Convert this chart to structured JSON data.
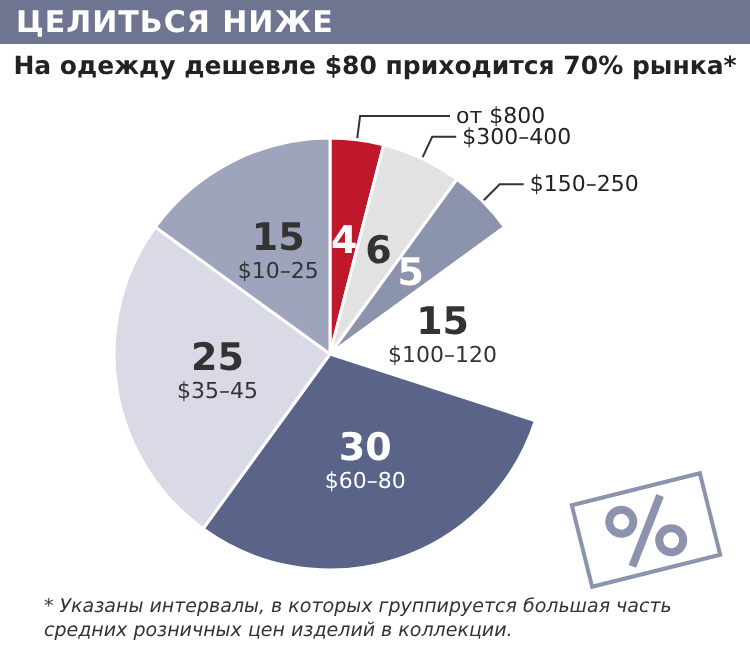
{
  "chart_data": {
    "type": "pie",
    "title": "ЦЕЛИТЬСЯ НИЖЕ",
    "subtitle": "На одежду дешевле $80 приходится 70% рынка*",
    "categories": [
      "от $800",
      "$300–400",
      "$150–250",
      "$100–120",
      "$60–80",
      "$35–45",
      "$10–25"
    ],
    "values": [
      4,
      6,
      5,
      15,
      30,
      25,
      15
    ],
    "colors": [
      "#c0182b",
      "#e2e2e2",
      "#8c93ad",
      "#ffffff",
      "#5a6388",
      "#d9dae6",
      "#9ea4bc"
    ],
    "data_labels": true,
    "annotations": [
      "* Указаны интервалы, в которых группируется  большая часть средних розничных цен изделий в коллекции."
    ]
  }
}
